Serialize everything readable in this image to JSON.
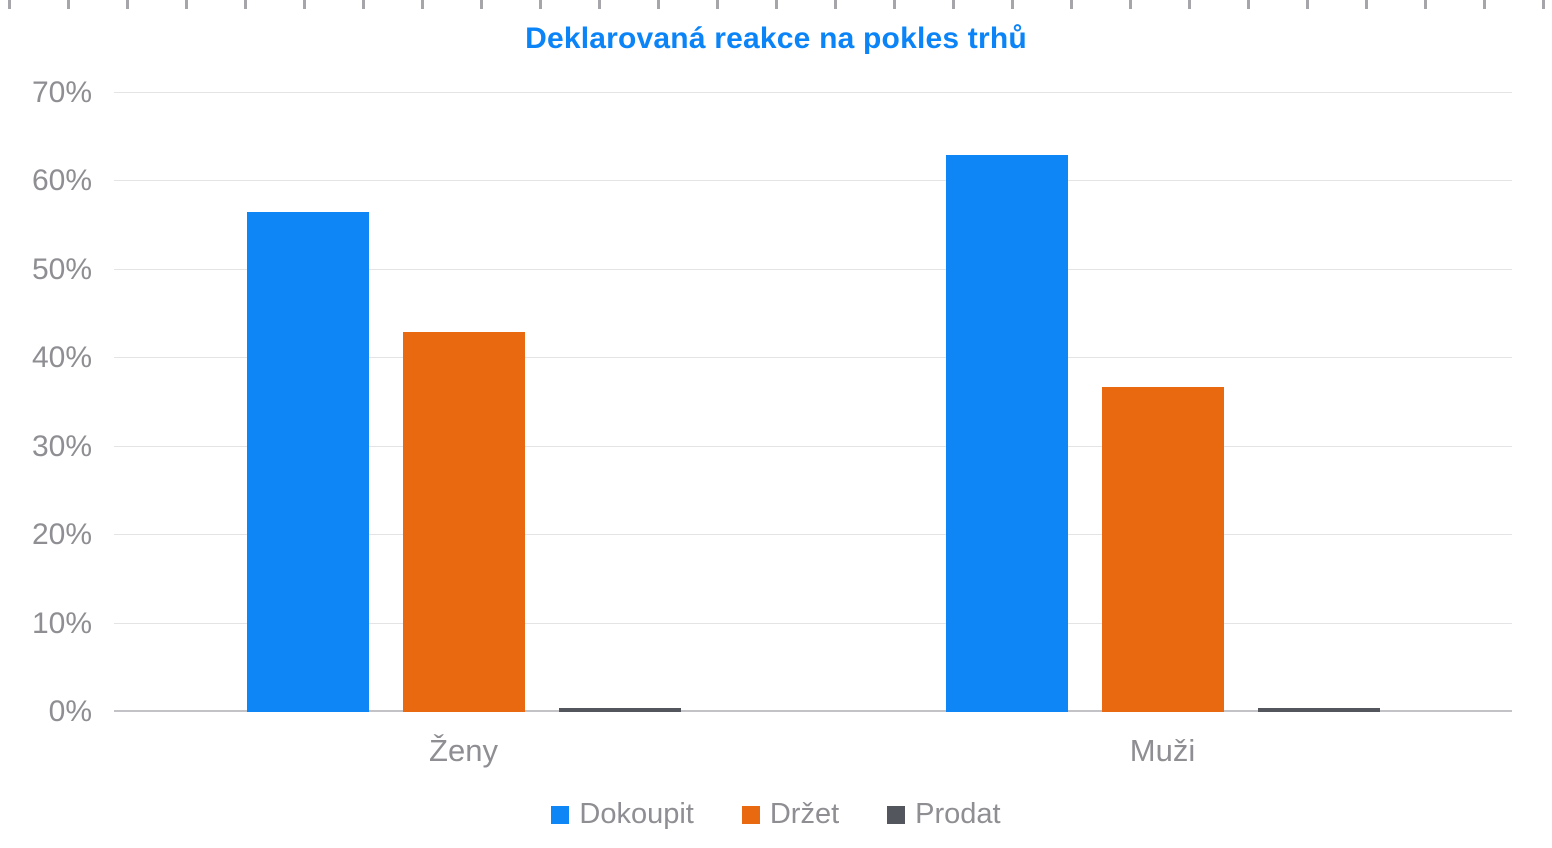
{
  "chart_data": {
    "type": "bar",
    "title": "Deklarovaná reakce na pokles trhů",
    "categories": [
      "Ženy",
      "Muži"
    ],
    "series": [
      {
        "name": "Dokoupit",
        "color": "#0e86f6",
        "values": [
          56.5,
          63.0
        ]
      },
      {
        "name": "Držet",
        "color": "#e8690f",
        "values": [
          43.0,
          36.7
        ]
      },
      {
        "name": "Prodat",
        "color": "#53575d",
        "values": [
          0.5,
          0.5
        ]
      }
    ],
    "xlabel": "",
    "ylabel": "",
    "ylim": [
      0,
      70
    ],
    "yticks": [
      0,
      10,
      20,
      30,
      40,
      50,
      60,
      70
    ],
    "ytick_suffix": "%",
    "grid": true,
    "legend_position": "bottom"
  },
  "colors": {
    "title": "#0b84f7",
    "axis_text": "#8e8e93",
    "gridline": "#e4e4e6",
    "baseline": "#c3c3c7",
    "background": "#ffffff"
  }
}
